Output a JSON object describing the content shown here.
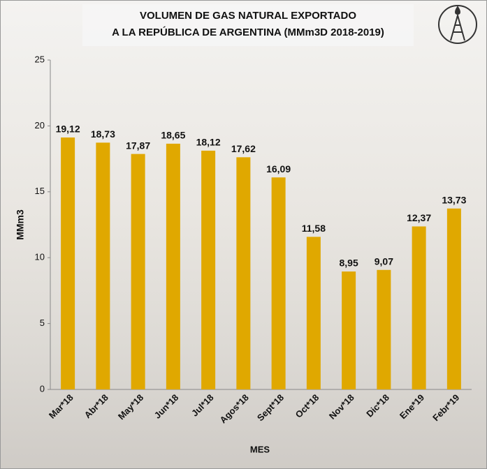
{
  "chart_data": {
    "type": "bar",
    "title": [
      "VOLUMEN DE GAS NATURAL EXPORTADO",
      "A LA REPÚBLICA DE ARGENTINA (MMm3D 2018-2019)"
    ],
    "x_label": "MES",
    "y_label": "MMm3",
    "categories": [
      "Mar*18",
      "Abr*18",
      "May*18",
      "Jun*18",
      "Jul*18",
      "Agos*18",
      "Sept*18",
      "Oct*18",
      "Nov*18",
      "Dic*18",
      "Ene*19",
      "Febr*19"
    ],
    "values": [
      19.12,
      18.73,
      17.87,
      18.65,
      18.12,
      17.62,
      16.09,
      11.58,
      8.95,
      9.07,
      12.37,
      13.73
    ],
    "value_labels": [
      "19,12",
      "18,73",
      "17,87",
      "18,65",
      "18,12",
      "17,62",
      "16,09",
      "11,58",
      "8,95",
      "9,07",
      "12,37",
      "13,73"
    ],
    "color": "#e0a800",
    "ylim": [
      0,
      25
    ],
    "yticks": [
      0,
      5,
      10,
      15,
      20,
      25
    ],
    "grid": false
  }
}
